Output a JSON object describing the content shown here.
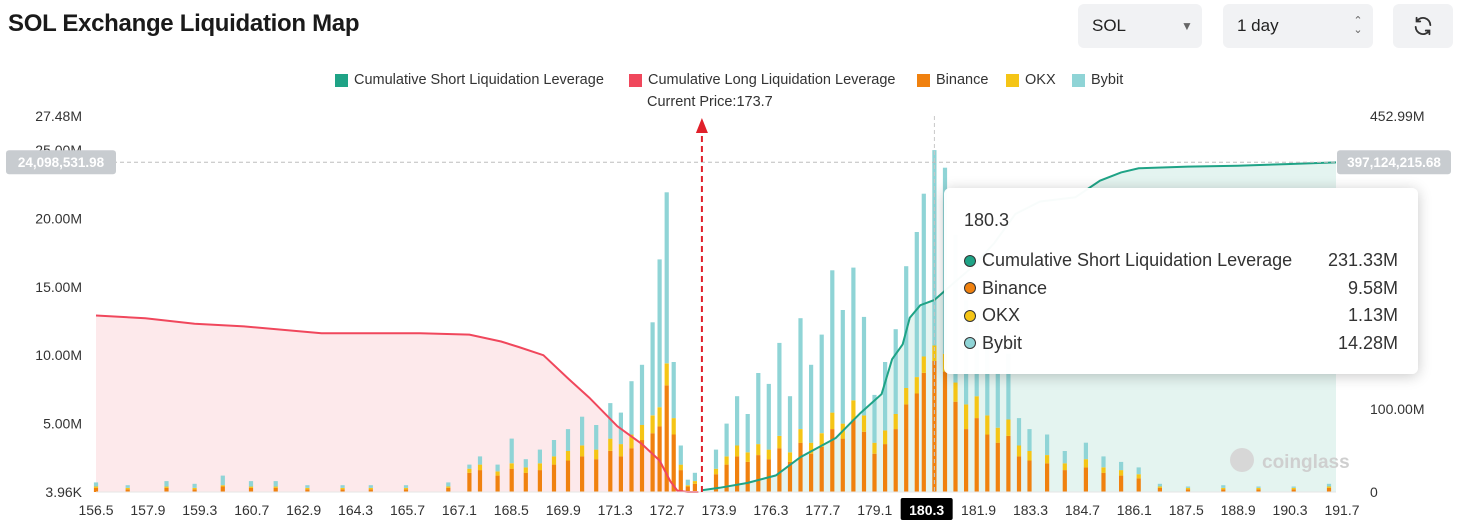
{
  "header": {
    "title": "SOL Exchange Liquidation Map",
    "symbol": "SOL",
    "range": "1 day",
    "refresh_icon": "refresh-icon"
  },
  "colors": {
    "short": "#1fa386",
    "long": "#f0475c",
    "binance": "#f0810f",
    "okx": "#f5c516",
    "bybit": "#8fd4d6"
  },
  "tooltip": {
    "title": "180.3",
    "rows": [
      {
        "name": "Cumulative Short Liquidation Leverage",
        "value": "231.33M",
        "color": "#1fa386"
      },
      {
        "name": "Binance",
        "value": "9.58M",
        "color": "#f0810f"
      },
      {
        "name": "OKX",
        "value": "1.13M",
        "color": "#f5c516"
      },
      {
        "name": "Bybit",
        "value": "14.28M",
        "color": "#8fd4d6"
      }
    ]
  },
  "chart_data": {
    "type": "bar",
    "title": "SOL Exchange Liquidation Map",
    "current_price_label": "Current Price:173.7",
    "current_price": 173.7,
    "hover_price": "180.3",
    "legend": [
      "Cumulative Short Liquidation Leverage",
      "Cumulative Long Liquidation Leverage",
      "Binance",
      "OKX",
      "Bybit"
    ],
    "x_range": [
      156.5,
      191.7
    ],
    "x_ticks": [
      "156.5",
      "157.9",
      "159.3",
      "160.7",
      "162.9",
      "164.3",
      "165.7",
      "167.1",
      "168.5",
      "169.9",
      "171.3",
      "172.7",
      "173.9",
      "176.3",
      "177.7",
      "179.1",
      "180.3",
      "181.9",
      "183.3",
      "184.7",
      "186.1",
      "187.5",
      "188.9",
      "190.3",
      "191.7"
    ],
    "y_left": {
      "ticks": [
        "3.96K",
        "5.00M",
        "10.00M",
        "15.00M",
        "20.00M",
        "25.00M",
        "27.48M"
      ],
      "ticks_values": [
        0,
        5,
        10,
        15,
        20,
        25,
        27.48
      ],
      "max": 27.48,
      "unit": "M"
    },
    "y_right": {
      "ticks": [
        "0",
        "100.00M",
        "452.99M"
      ],
      "ticks_values": [
        0,
        100,
        452.99
      ],
      "max": 452.99,
      "unit": "M"
    },
    "crosshair": {
      "left_label": "24,098,531.98",
      "right_label": "397,124,215.68",
      "left_value": 24.1
    },
    "long_curve": {
      "x": [
        156.5,
        157.9,
        159.3,
        160.7,
        162.9,
        164.3,
        165.7,
        167.1,
        168.0,
        168.5,
        169.2,
        169.9,
        170.5,
        171.3,
        172.0,
        172.5,
        172.8,
        173.0,
        173.3,
        173.6
      ],
      "y": [
        12.9,
        12.7,
        12.3,
        12.1,
        11.6,
        11.6,
        11.6,
        11.5,
        11.0,
        10.6,
        10.0,
        8.3,
        6.9,
        4.8,
        3.5,
        2.3,
        0.8,
        0.1,
        0.0,
        0.0
      ]
    },
    "short_curve": {
      "x": [
        173.7,
        174.2,
        175.0,
        175.8,
        176.5,
        177.5,
        178.2,
        178.8,
        179.1,
        179.4,
        179.6,
        179.9,
        180.3,
        180.8,
        181.4,
        182.0,
        182.6,
        183.3,
        184.3,
        185.0,
        185.6,
        186.1,
        187.5,
        188.9,
        190.3,
        191.7
      ],
      "y": [
        2,
        5,
        11,
        20,
        42,
        65,
        95,
        118,
        160,
        178,
        210,
        225,
        231.33,
        250,
        272,
        300,
        335,
        350,
        355,
        375,
        385,
        390,
        392,
        393,
        395,
        397.1
      ]
    },
    "series": [
      {
        "name": "Binance",
        "x": [
          156.5,
          157.4,
          158.5,
          159.3,
          160.1,
          160.9,
          161.6,
          162.5,
          163.5,
          164.3,
          165.3,
          166.5,
          167.1,
          167.4,
          167.9,
          168.3,
          168.7,
          169.1,
          169.5,
          169.9,
          170.3,
          170.7,
          171.1,
          171.4,
          171.7,
          172.0,
          172.3,
          172.5,
          172.7,
          172.9,
          173.1,
          173.3,
          173.5,
          174.1,
          174.4,
          174.7,
          175.0,
          175.3,
          175.6,
          175.9,
          176.2,
          176.5,
          176.8,
          177.1,
          177.4,
          177.7,
          178.0,
          178.3,
          178.6,
          178.9,
          179.2,
          179.5,
          179.8,
          180.0,
          180.3,
          180.6,
          180.9,
          181.2,
          181.5,
          181.8,
          182.1,
          182.4,
          182.7,
          183.0,
          183.5,
          184.0,
          184.6,
          185.1,
          185.6,
          186.1,
          186.7,
          187.5,
          188.5,
          189.5,
          190.5,
          191.5
        ],
        "values": [
          0.3,
          0.2,
          0.3,
          0.2,
          0.4,
          0.3,
          0.3,
          0.2,
          0.2,
          0.2,
          0.2,
          0.3,
          1.4,
          1.6,
          1.2,
          1.7,
          1.4,
          1.6,
          2.0,
          2.3,
          2.6,
          2.4,
          3.0,
          2.6,
          3.2,
          3.8,
          4.3,
          4.8,
          7.8,
          4.2,
          1.6,
          0.4,
          0.6,
          1.3,
          2.0,
          2.6,
          2.2,
          2.7,
          2.4,
          3.2,
          2.2,
          3.6,
          2.8,
          3.3,
          4.6,
          3.9,
          5.3,
          4.4,
          2.8,
          3.5,
          4.6,
          6.4,
          7.2,
          8.7,
          9.58,
          8.8,
          6.6,
          4.6,
          5.4,
          4.2,
          3.6,
          4.1,
          2.6,
          2.3,
          2.1,
          1.6,
          1.8,
          1.4,
          1.2,
          1.0,
          0.3,
          0.2,
          0.2,
          0.2,
          0.2,
          0.3
        ]
      },
      {
        "name": "OKX",
        "x": [
          156.5,
          157.4,
          158.5,
          159.3,
          160.1,
          160.9,
          161.6,
          162.5,
          163.5,
          164.3,
          165.3,
          166.5,
          167.1,
          167.4,
          167.9,
          168.3,
          168.7,
          169.1,
          169.5,
          169.9,
          170.3,
          170.7,
          171.1,
          171.4,
          171.7,
          172.0,
          172.3,
          172.5,
          172.7,
          172.9,
          173.1,
          173.3,
          173.5,
          174.1,
          174.4,
          174.7,
          175.0,
          175.3,
          175.6,
          175.9,
          176.2,
          176.5,
          176.8,
          177.1,
          177.4,
          177.7,
          178.0,
          178.3,
          178.6,
          178.9,
          179.2,
          179.5,
          179.8,
          180.0,
          180.3,
          180.6,
          180.9,
          181.2,
          181.5,
          181.8,
          182.1,
          182.4,
          182.7,
          183.0,
          183.5,
          184.0,
          184.6,
          185.1,
          185.6,
          186.1,
          186.7,
          187.5,
          188.5,
          189.5,
          190.5,
          191.5
        ],
        "values": [
          0.1,
          0.1,
          0.1,
          0.1,
          0.1,
          0.1,
          0.1,
          0.1,
          0.1,
          0.1,
          0.1,
          0.1,
          0.3,
          0.4,
          0.3,
          0.4,
          0.4,
          0.5,
          0.6,
          0.7,
          0.8,
          0.7,
          0.9,
          0.9,
          1.0,
          1.1,
          1.3,
          1.4,
          1.6,
          1.2,
          0.4,
          0.1,
          0.2,
          0.4,
          0.6,
          0.8,
          0.7,
          0.8,
          0.7,
          0.9,
          0.7,
          1.0,
          0.8,
          1.0,
          1.2,
          1.1,
          1.4,
          1.2,
          0.8,
          1.0,
          1.1,
          1.2,
          1.2,
          1.2,
          1.13,
          1.3,
          1.4,
          1.8,
          1.6,
          1.4,
          1.1,
          1.2,
          0.8,
          0.7,
          0.6,
          0.5,
          0.6,
          0.4,
          0.4,
          0.3,
          0.1,
          0.1,
          0.1,
          0.1,
          0.1,
          0.1
        ]
      },
      {
        "name": "Bybit",
        "x": [
          156.5,
          157.4,
          158.5,
          159.3,
          160.1,
          160.9,
          161.6,
          162.5,
          163.5,
          164.3,
          165.3,
          166.5,
          167.1,
          167.4,
          167.9,
          168.3,
          168.7,
          169.1,
          169.5,
          169.9,
          170.3,
          170.7,
          171.1,
          171.4,
          171.7,
          172.0,
          172.3,
          172.5,
          172.7,
          172.9,
          173.1,
          173.3,
          173.5,
          174.1,
          174.4,
          174.7,
          175.0,
          175.3,
          175.6,
          175.9,
          176.2,
          176.5,
          176.8,
          177.1,
          177.4,
          177.7,
          178.0,
          178.3,
          178.6,
          178.9,
          179.2,
          179.5,
          179.8,
          180.0,
          180.3,
          180.6,
          180.9,
          181.2,
          181.5,
          181.8,
          182.1,
          182.4,
          182.7,
          183.0,
          183.5,
          184.0,
          184.6,
          185.1,
          185.6,
          186.1,
          186.7,
          187.5,
          188.5,
          189.5,
          190.5,
          191.5
        ],
        "values": [
          0.3,
          0.2,
          0.4,
          0.3,
          0.7,
          0.4,
          0.4,
          0.2,
          0.2,
          0.2,
          0.2,
          0.3,
          0.3,
          0.6,
          0.5,
          1.8,
          0.6,
          1.0,
          1.2,
          1.6,
          2.1,
          1.8,
          2.6,
          2.3,
          3.9,
          4.4,
          6.8,
          10.8,
          12.5,
          4.1,
          1.4,
          0.4,
          0.6,
          1.4,
          2.4,
          3.6,
          2.8,
          5.2,
          4.8,
          6.8,
          4.1,
          8.1,
          5.7,
          7.2,
          10.4,
          8.3,
          9.7,
          7.2,
          3.5,
          5.0,
          6.2,
          8.9,
          10.6,
          11.9,
          14.28,
          13.6,
          10.8,
          7.6,
          5.7,
          5.6,
          4.0,
          4.8,
          2.0,
          1.6,
          1.5,
          0.9,
          1.2,
          0.8,
          0.6,
          0.5,
          0.2,
          0.1,
          0.2,
          0.1,
          0.1,
          0.2
        ]
      }
    ],
    "watermark": "coinglass"
  }
}
